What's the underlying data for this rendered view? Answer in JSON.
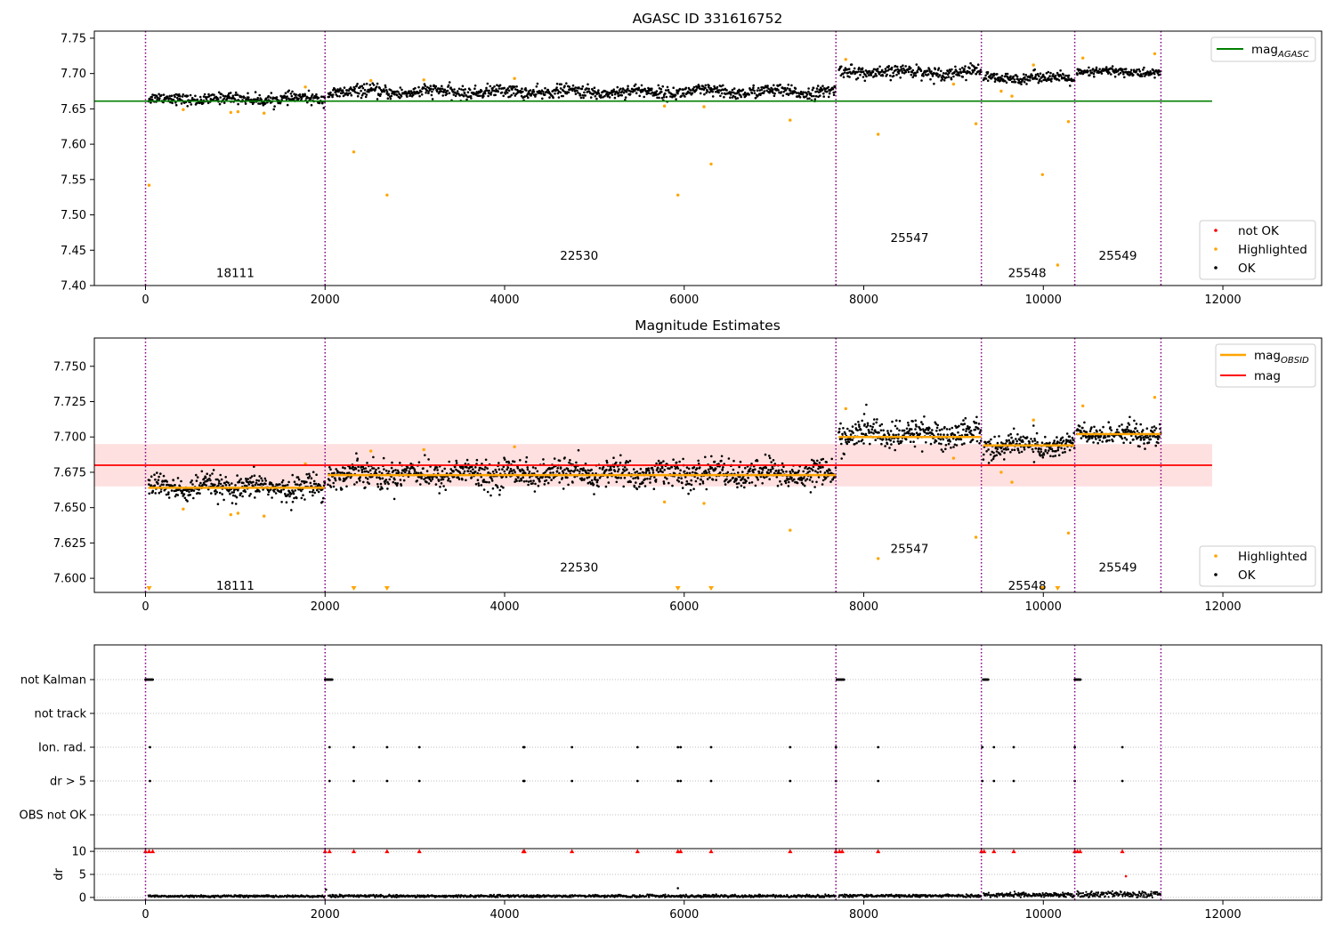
{
  "chart_data": [
    {
      "type": "scatter",
      "title": "AGASC ID 331616752",
      "xlim": [
        -570,
        13100
      ],
      "ylim": [
        7.4,
        7.76
      ],
      "x_ticks": [
        0,
        2000,
        4000,
        6000,
        8000,
        10000,
        12000
      ],
      "y_ticks": [
        7.4,
        7.45,
        7.5,
        7.55,
        7.6,
        7.65,
        7.7,
        7.75
      ],
      "y_tick_labels": [
        "7.40",
        "7.45",
        "7.50",
        "7.55",
        "7.60",
        "7.65",
        "7.70",
        "7.75"
      ],
      "obsid_boundaries": [
        0,
        2000,
        7690,
        9310,
        10350,
        11310
      ],
      "obsids": [
        {
          "label": "18111",
          "x": 1000,
          "y": 7.418
        },
        {
          "label": "22530",
          "x": 4830,
          "y": 7.443
        },
        {
          "label": "25547",
          "x": 8510,
          "y": 7.468
        },
        {
          "label": "25548",
          "x": 9820,
          "y": 7.418
        },
        {
          "label": "25549",
          "x": 10830,
          "y": 7.443
        }
      ],
      "segments": [
        {
          "x_start": 30,
          "x_end": 2000,
          "mean": 7.664,
          "spread": 0.007
        },
        {
          "x_start": 2030,
          "x_end": 7690,
          "mean": 7.674,
          "spread": 0.008
        },
        {
          "x_start": 7720,
          "x_end": 9310,
          "mean": 7.702,
          "spread": 0.008
        },
        {
          "x_start": 9330,
          "x_end": 10350,
          "mean": 7.694,
          "spread": 0.007
        },
        {
          "x_start": 10370,
          "x_end": 11310,
          "mean": 7.702,
          "spread": 0.006
        }
      ],
      "highlighted_points": [
        [
          40,
          7.542
        ],
        [
          1320,
          7.644
        ],
        [
          950,
          7.645
        ],
        [
          1030,
          7.646
        ],
        [
          420,
          7.649
        ],
        [
          2320,
          7.589
        ],
        [
          2690,
          7.528
        ],
        [
          5930,
          7.528
        ],
        [
          6300,
          7.572
        ],
        [
          7180,
          7.634
        ],
        [
          8160,
          7.614
        ],
        [
          9250,
          7.629
        ],
        [
          9990,
          7.557
        ],
        [
          10160,
          7.429
        ],
        [
          10280,
          7.632
        ],
        [
          9650,
          7.668
        ],
        [
          9530,
          7.675
        ],
        [
          9000,
          7.685
        ],
        [
          7800,
          7.72
        ],
        [
          11240,
          7.728
        ],
        [
          5780,
          7.654
        ],
        [
          6220,
          7.653
        ],
        [
          4110,
          7.693
        ],
        [
          3100,
          7.691
        ],
        [
          10440,
          7.722
        ],
        [
          1780,
          7.681
        ],
        [
          2510,
          7.69
        ],
        [
          9890,
          7.712
        ]
      ],
      "reference_lines": [
        {
          "name": "mag_AGASC",
          "y": 7.661,
          "x_start": -570,
          "x_end": 11880,
          "color": "#008000"
        }
      ],
      "legend": {
        "upper": {
          "placement": "top-right",
          "entries": [
            {
              "label": "mag",
              "sub": "AGASC",
              "color": "#008000",
              "kind": "line"
            }
          ]
        },
        "lower": {
          "placement": "bottom-right",
          "entries": [
            {
              "label": "not OK",
              "color": "#ff0000",
              "kind": "dot"
            },
            {
              "label": "Highlighted",
              "color": "#ffa500",
              "kind": "dot"
            },
            {
              "label": "OK",
              "color": "#000000",
              "kind": "dot"
            }
          ]
        }
      }
    },
    {
      "type": "scatter",
      "title": "Magnitude Estimates",
      "xlim": [
        -570,
        13100
      ],
      "ylim": [
        7.59,
        7.77
      ],
      "x_ticks": [
        0,
        2000,
        4000,
        6000,
        8000,
        10000,
        12000
      ],
      "y_ticks": [
        7.6,
        7.625,
        7.65,
        7.675,
        7.7,
        7.725,
        7.75
      ],
      "y_tick_labels": [
        "7.600",
        "7.625",
        "7.650",
        "7.675",
        "7.700",
        "7.725",
        "7.750"
      ],
      "obsids": [
        {
          "label": "18111",
          "x": 1000,
          "y": 7.595
        },
        {
          "label": "22530",
          "x": 4830,
          "y": 7.608
        },
        {
          "label": "25547",
          "x": 8510,
          "y": 7.621
        },
        {
          "label": "25548",
          "x": 9820,
          "y": 7.595
        },
        {
          "label": "25549",
          "x": 10830,
          "y": 7.608
        }
      ],
      "mag": {
        "y": 7.68,
        "band": [
          7.665,
          7.695
        ],
        "x_start": -570,
        "x_end": 11880,
        "color": "#ff0000"
      },
      "mag_obsid": [
        {
          "x_start": 30,
          "x_end": 2000,
          "y": 7.664
        },
        {
          "x_start": 2030,
          "x_end": 7690,
          "y": 7.673
        },
        {
          "x_start": 7720,
          "x_end": 9310,
          "y": 7.7
        },
        {
          "x_start": 9330,
          "x_end": 10350,
          "y": 7.694
        },
        {
          "x_start": 10370,
          "x_end": 11310,
          "y": 7.702
        }
      ],
      "out_of_range_markers_x": [
        40,
        2320,
        2690,
        5930,
        6300,
        9990,
        10160
      ],
      "legend": {
        "upper": {
          "placement": "top-right",
          "entries": [
            {
              "label": "mag",
              "sub": "OBSID",
              "color": "#ffa500",
              "kind": "line"
            },
            {
              "label": "mag",
              "sub": "",
              "color": "#ff0000",
              "kind": "line"
            }
          ]
        },
        "lower": {
          "placement": "bottom-right",
          "entries": [
            {
              "label": "Highlighted",
              "color": "#ffa500",
              "kind": "dot"
            },
            {
              "label": "OK",
              "color": "#000000",
              "kind": "dot"
            }
          ]
        }
      }
    },
    {
      "type": "scatter",
      "xlim": [
        -570,
        13100
      ],
      "x_ticks": [
        0,
        2000,
        4000,
        6000,
        8000,
        10000,
        12000
      ],
      "flag_rows": [
        "not Kalman",
        "not track",
        "Ion. rad.",
        "dr > 5",
        "OBS not OK"
      ],
      "flag_events": {
        "not Kalman": [
          [
            0,
            80
          ],
          [
            2000,
            2080
          ],
          [
            7700,
            7780
          ],
          [
            9330,
            9390
          ],
          [
            10350,
            10420
          ]
        ],
        "Ion. rad.": [
          50,
          2050,
          2320,
          2690,
          3050,
          4210,
          4220,
          4750,
          5480,
          5930,
          5960,
          6300,
          7180,
          7690,
          8160,
          9320,
          9450,
          9670,
          10350,
          10880
        ],
        "dr > 5": [
          50,
          2050,
          2320,
          2690,
          3050,
          4210,
          4220,
          4750,
          5480,
          5930,
          5960,
          6300,
          7180,
          7690,
          8160,
          9320,
          9450,
          9670,
          10350,
          10880
        ]
      },
      "dr": {
        "ylabel": "dr",
        "ylim": [
          -0.6,
          10.6
        ],
        "y_ticks": [
          0,
          5,
          10
        ],
        "clip_markers_x": [
          0,
          40,
          80,
          2000,
          2050,
          2320,
          2690,
          3050,
          4210,
          4220,
          4750,
          5480,
          5930,
          5960,
          6300,
          7180,
          7690,
          7730,
          7760,
          8160,
          9310,
          9340,
          9450,
          9670,
          10350,
          10380,
          10410,
          10880
        ],
        "outliers": [
          [
            10920,
            4.6
          ],
          [
            5930,
            2.0
          ],
          [
            2010,
            1.7
          ]
        ],
        "segments": [
          {
            "x_start": 30,
            "x_end": 2000,
            "level": 0.25
          },
          {
            "x_start": 2030,
            "x_end": 7690,
            "level": 0.3
          },
          {
            "x_start": 7720,
            "x_end": 9310,
            "level": 0.35
          },
          {
            "x_start": 9330,
            "x_end": 10350,
            "level": 0.55
          },
          {
            "x_start": 10370,
            "x_end": 11310,
            "level": 0.7
          }
        ]
      }
    }
  ]
}
